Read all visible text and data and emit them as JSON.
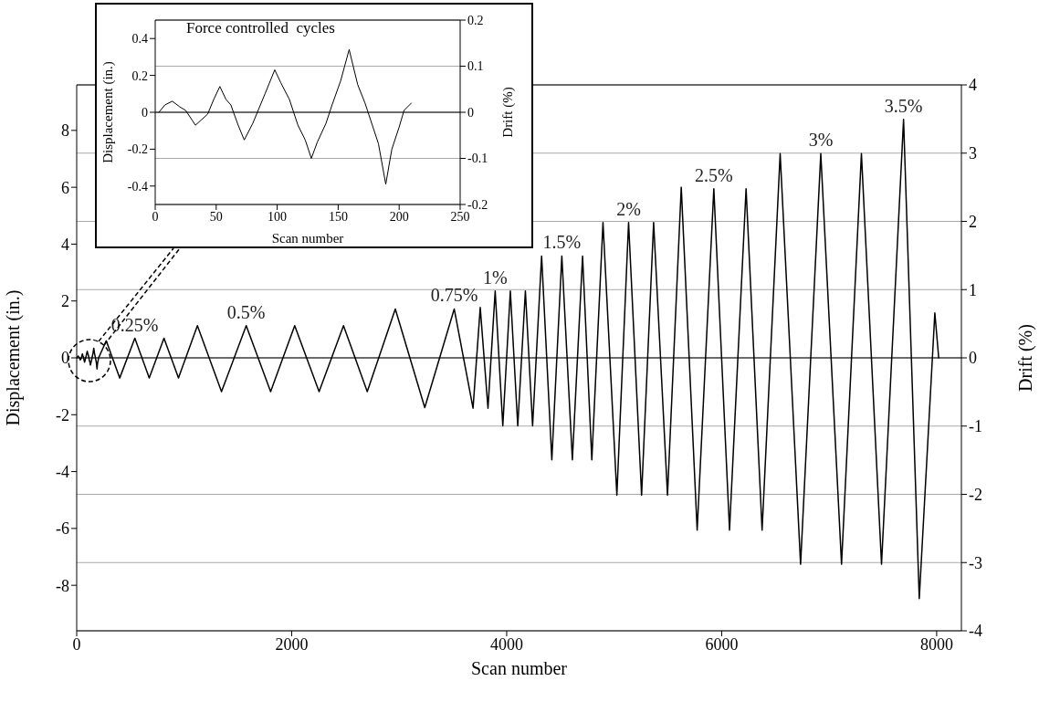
{
  "chart_data": [
    {
      "type": "line",
      "xlabel": "Scan number",
      "ylabel": "Displacement (in.)",
      "y2label": "Drift (%)",
      "xlim": [
        0,
        8230
      ],
      "xticks": [
        0,
        2000,
        4000,
        6000,
        8000
      ],
      "ylim": [
        -9.6,
        9.6
      ],
      "yticks": [
        -8,
        -6,
        -4,
        -2,
        0,
        2,
        4,
        6,
        8
      ],
      "y2lim": [
        -4,
        4
      ],
      "y2ticks": [
        -4,
        -3,
        -2,
        -1,
        0,
        1,
        2,
        3,
        4
      ],
      "grid": "y2",
      "ref_lines": [
        {
          "axis": "y",
          "value": 0,
          "color": "#000000"
        }
      ],
      "annotations": [
        {
          "text": "0.25%",
          "x": 541,
          "y": 0.69
        },
        {
          "text": "0.5%",
          "x": 1577,
          "y": 1.13
        },
        {
          "text": "0.75%",
          "x": 3512,
          "y": 1.72
        },
        {
          "text": "1%",
          "x": 3893,
          "y": 2.35
        },
        {
          "text": "1.5%",
          "x": 4513,
          "y": 3.58
        },
        {
          "text": "2%",
          "x": 5134,
          "y": 4.76
        },
        {
          "text": "2.5%",
          "x": 5927,
          "y": 5.95
        },
        {
          "text": "3%",
          "x": 6922,
          "y": 7.18
        },
        {
          "text": "3.5%",
          "x": 7692,
          "y": 8.39
        }
      ],
      "series": [
        {
          "color": "#000000",
          "x": [
            3,
            8,
            14,
            20,
            25,
            30,
            33,
            38,
            43,
            48,
            53,
            58,
            62,
            68,
            73,
            80,
            85,
            90,
            98,
            103,
            110,
            117,
            123,
            128,
            133,
            140,
            145,
            152,
            159,
            166,
            172,
            178,
            183,
            189,
            194,
            200,
            204,
            210,
            275,
            400,
            541,
            675,
            812,
            947,
            1123,
            1347,
            1577,
            1804,
            2028,
            2255,
            2482,
            2703,
            2964,
            3238,
            3512,
            3687,
            3754,
            3826,
            3893,
            3964,
            4034,
            4103,
            4174,
            4241,
            4325,
            4420,
            4513,
            4611,
            4706,
            4792,
            4896,
            5025,
            5134,
            5255,
            5367,
            5496,
            5624,
            5772,
            5927,
            6073,
            6227,
            6376,
            6544,
            6734,
            6922,
            7115,
            7300,
            7487,
            7692,
            7838,
            7983,
            8019
          ],
          "values": [
            0,
            0.04,
            0.06,
            0.03,
            0.01,
            -0.04,
            -0.07,
            -0.04,
            -0.01,
            0.07,
            0.14,
            0.07,
            0.04,
            -0.07,
            -0.15,
            -0.06,
            0.02,
            0.1,
            0.23,
            0.16,
            0.07,
            -0.07,
            -0.15,
            -0.25,
            -0.16,
            -0.06,
            0.04,
            0.17,
            0.34,
            0.15,
            0.05,
            -0.07,
            -0.17,
            -0.39,
            -0.2,
            -0.08,
            0.01,
            0.05,
            0.6,
            -0.71,
            0.69,
            -0.71,
            0.69,
            -0.71,
            1.13,
            -1.19,
            1.13,
            -1.19,
            1.13,
            -1.19,
            1.13,
            -1.19,
            1.72,
            -1.75,
            1.72,
            -1.77,
            1.77,
            -1.77,
            2.35,
            -2.39,
            2.35,
            -2.39,
            2.35,
            -2.39,
            3.58,
            -3.59,
            3.58,
            -3.59,
            3.58,
            -3.59,
            4.76,
            -4.83,
            4.76,
            -4.83,
            4.76,
            -4.83,
            6.0,
            -6.06,
            5.95,
            -6.06,
            5.95,
            -6.06,
            7.18,
            -7.26,
            7.18,
            -7.26,
            7.18,
            -7.26,
            8.39,
            -8.47,
            1.58,
            0
          ]
        }
      ]
    },
    {
      "type": "line",
      "title": "Force controlled  cycles",
      "xlabel": "Scan number",
      "ylabel": "Displacement (in.)",
      "y2label": "Drift (%)",
      "xlim": [
        0,
        250
      ],
      "xticks": [
        0,
        50,
        100,
        150,
        200,
        250
      ],
      "ylim": [
        -0.5,
        0.5
      ],
      "yticks": [
        -0.4,
        -0.2,
        0,
        0.2,
        0.4
      ],
      "y2lim": [
        -0.2,
        0.2
      ],
      "y2ticks": [
        -0.2,
        -0.1,
        0,
        0.1,
        0.2
      ],
      "grid": "y2",
      "ref_lines": [
        {
          "axis": "y",
          "value": 0,
          "color": "#000000"
        }
      ],
      "series": [
        {
          "color": "#000000",
          "x": [
            3,
            8,
            14,
            20,
            25,
            30,
            33,
            38,
            43,
            48,
            53,
            58,
            62,
            68,
            73,
            80,
            85,
            90,
            98,
            103,
            110,
            117,
            123,
            128,
            133,
            140,
            145,
            152,
            159,
            166,
            172,
            178,
            183,
            189,
            194,
            200,
            204,
            210
          ],
          "values": [
            0,
            0.04,
            0.06,
            0.03,
            0.01,
            -0.04,
            -0.07,
            -0.04,
            -0.01,
            0.07,
            0.14,
            0.07,
            0.04,
            -0.07,
            -0.15,
            -0.06,
            0.02,
            0.1,
            0.23,
            0.16,
            0.07,
            -0.07,
            -0.15,
            -0.25,
            -0.16,
            -0.06,
            0.04,
            0.17,
            0.34,
            0.15,
            0.05,
            -0.07,
            -0.17,
            -0.39,
            -0.2,
            -0.08,
            0.01,
            0.05
          ]
        }
      ]
    }
  ]
}
